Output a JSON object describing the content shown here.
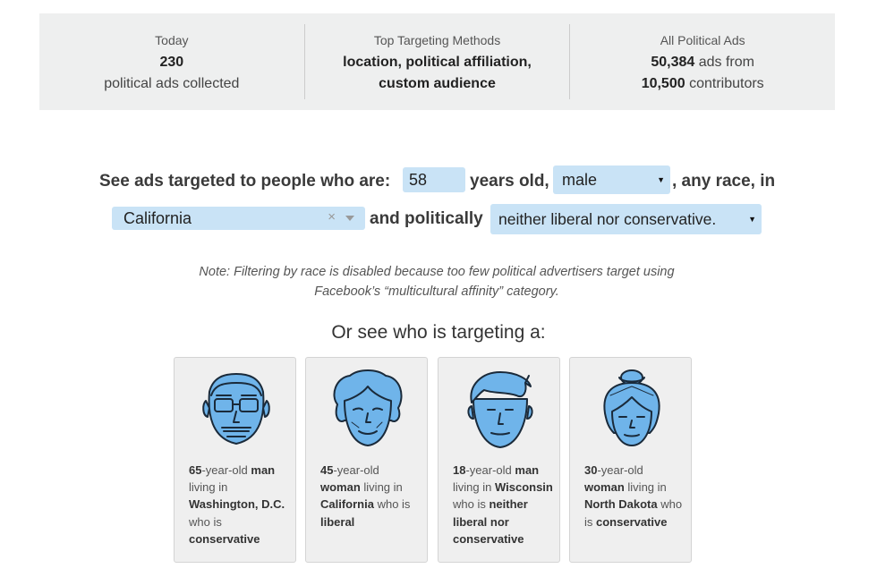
{
  "stats": {
    "today": {
      "label": "Today",
      "count": "230",
      "text": "political ads collected"
    },
    "methods": {
      "label": "Top Targeting Methods",
      "line1": "location, political affiliation,",
      "line2": "custom audience"
    },
    "all": {
      "label": "All Political Ads",
      "ads": "50,384",
      "ads_suffix": " ads from",
      "contributors": "10,500",
      "contributors_suffix": " contributors"
    }
  },
  "filter": {
    "prefix": "See ads targeted to people who are:",
    "age_value": "58",
    "age_suffix": "years old,",
    "gender_value": "male",
    "race_text": ", any race, in",
    "state_value": "California",
    "politics_prefix": "and politically",
    "politics_value": "neither liberal nor conservative.",
    "clear_glyph": "×",
    "caret_glyph": "▼"
  },
  "note": {
    "line1": "Note: Filtering by race is disabled because too few political advertisers target using",
    "line2": "Facebook’s “multicultural affinity” category."
  },
  "personas_heading": "Or see who is targeting a:",
  "personas": [
    {
      "icon": "elderly-man-face-icon",
      "age": "65",
      "p1": "-year-old ",
      "who": "man",
      "p2": " living in ",
      "place": "Washington, D.C.",
      "p3": " who is ",
      "politics": "conservative"
    },
    {
      "icon": "woman-face-icon",
      "age": "45",
      "p1": "-year-old ",
      "who": "woman",
      "p2": " living in ",
      "place": "California",
      "p3": " who is ",
      "politics": "liberal"
    },
    {
      "icon": "young-man-face-icon",
      "age": "18",
      "p1": "-year-old ",
      "who": "man",
      "p2": " living in ",
      "place": "Wisconsin",
      "p3": " who is ",
      "politics": "neither liberal nor conservative"
    },
    {
      "icon": "woman-bun-face-icon",
      "age": "30",
      "p1": "-year-old ",
      "who": "woman",
      "p2": " living in ",
      "place": "North Dakota",
      "p3": " who is ",
      "politics": "conservative"
    }
  ],
  "colors": {
    "pill": "#c9e3f6",
    "face_fill": "#6fb4ea",
    "face_stroke": "#1a2a3a",
    "panel": "#eeefef"
  }
}
